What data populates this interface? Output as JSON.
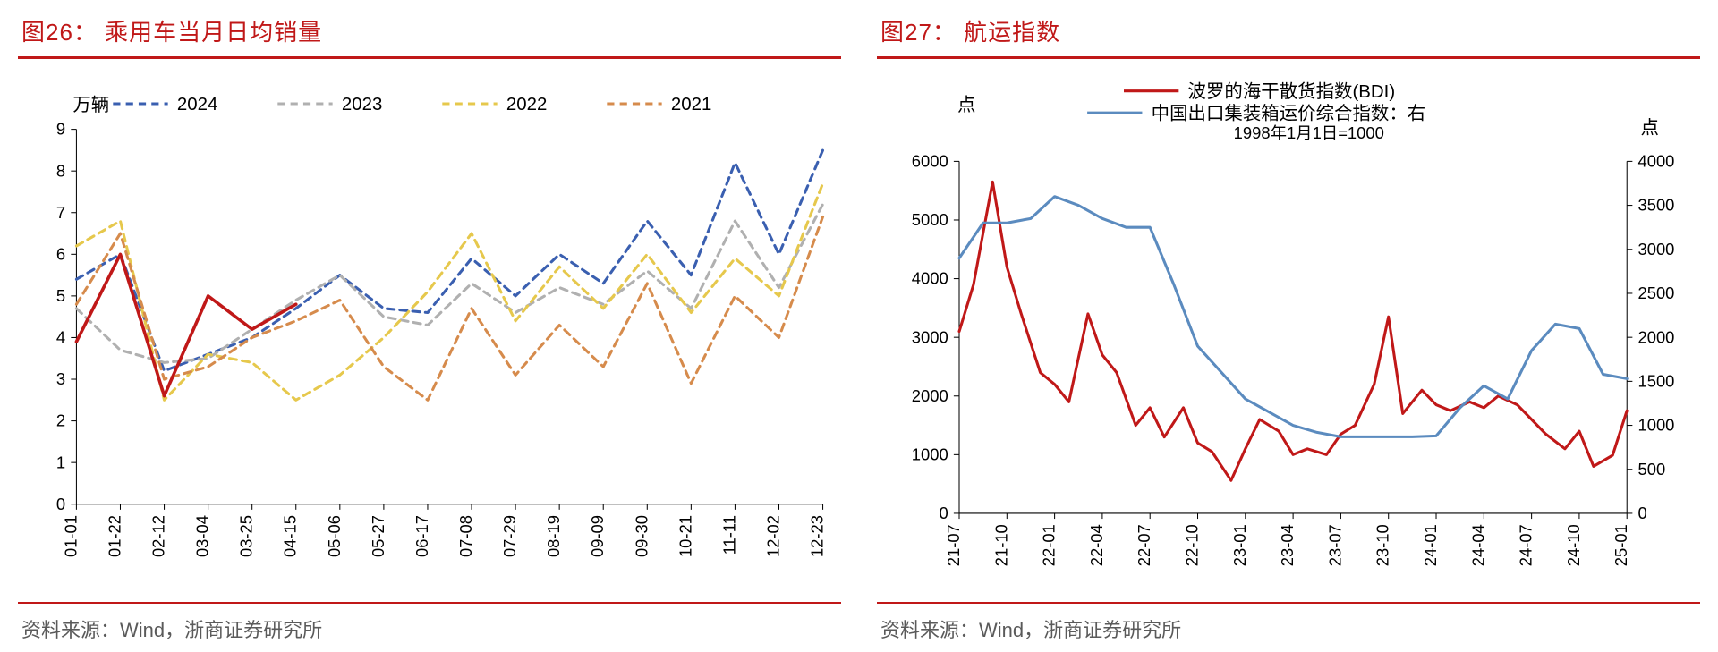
{
  "panel_left": {
    "title": "图26：  乘用车当月日均销量",
    "source": "资料来源：Wind，浙商证券研究所",
    "chart": {
      "type": "line",
      "y_axis_label": "万辆",
      "y_min": 0,
      "y_max": 9,
      "y_tick_step": 1,
      "x_labels": [
        "01-01",
        "01-22",
        "02-12",
        "03-04",
        "03-25",
        "04-15",
        "05-06",
        "05-27",
        "06-17",
        "07-08",
        "07-29",
        "08-19",
        "09-09",
        "09-30",
        "10-21",
        "11-11",
        "12-02",
        "12-23"
      ],
      "legend": [
        {
          "label": "2024",
          "color": "#3a5fb0",
          "dash": "8,6",
          "width": 3
        },
        {
          "label": "2023",
          "color": "#b0b0b0",
          "dash": "8,6",
          "width": 3
        },
        {
          "label": "2022",
          "color": "#e6c84c",
          "dash": "8,6",
          "width": 3
        },
        {
          "label": "2021",
          "color": "#d68b4c",
          "dash": "8,6",
          "width": 3
        }
      ],
      "series": {
        "s2024": {
          "color": "#3a5fb0",
          "dash": "8,6",
          "width": 3,
          "data": [
            5.4,
            6.0,
            3.2,
            3.6,
            4.0,
            4.7,
            5.5,
            4.7,
            4.6,
            5.9,
            5.0,
            6.0,
            5.3,
            6.8,
            5.5,
            8.2,
            6.0,
            8.5
          ]
        },
        "s2023": {
          "color": "#b0b0b0",
          "dash": "8,6",
          "width": 3,
          "data": [
            4.7,
            3.7,
            3.4,
            3.5,
            4.2,
            4.9,
            5.5,
            4.5,
            4.3,
            5.3,
            4.6,
            5.2,
            4.8,
            5.6,
            4.7,
            6.8,
            5.2,
            7.2
          ]
        },
        "s2022": {
          "color": "#e6c84c",
          "dash": "8,6",
          "width": 3,
          "data": [
            6.2,
            6.8,
            2.5,
            3.6,
            3.4,
            2.5,
            3.1,
            4.0,
            5.1,
            6.5,
            4.4,
            5.7,
            4.7,
            6.0,
            4.6,
            5.9,
            5.0,
            7.7
          ]
        },
        "s2021": {
          "color": "#d68b4c",
          "dash": "8,6",
          "width": 3,
          "data": [
            4.8,
            6.5,
            3.0,
            3.3,
            4.0,
            4.4,
            4.9,
            3.3,
            2.5,
            4.7,
            3.1,
            4.3,
            3.3,
            5.3,
            2.9,
            5.0,
            4.0,
            6.9
          ]
        },
        "s2025_partial": {
          "color": "#c01818",
          "dash": "none",
          "width": 3.5,
          "data": [
            3.9,
            6.0,
            2.6,
            5.0,
            4.2,
            4.8
          ]
        }
      },
      "background_color": "#ffffff",
      "grid": false,
      "label_fontsize": 18
    }
  },
  "panel_right": {
    "title": "图27：  航运指数",
    "source": "资料来源：Wind，浙商证券研究所",
    "chart": {
      "type": "line-dual-axis",
      "y_left_label": "点",
      "y_right_label": "点",
      "y_left_min": 0,
      "y_left_max": 6000,
      "y_left_step": 1000,
      "y_right_min": 0,
      "y_right_max": 4000,
      "y_right_step": 500,
      "x_labels": [
        "21-07",
        "21-10",
        "22-01",
        "22-04",
        "22-07",
        "22-10",
        "23-01",
        "23-04",
        "23-07",
        "23-10",
        "24-01",
        "24-04",
        "24-07",
        "24-10",
        "25-01"
      ],
      "legend": [
        {
          "label": "波罗的海干散货指数(BDI)",
          "color": "#c01818",
          "dash": "none",
          "width": 3
        },
        {
          "label": "中国出口集装箱运价综合指数：右",
          "color": "#5b8bbf",
          "dash": "none",
          "width": 3
        }
      ],
      "legend_note": "1998年1月1日=1000",
      "series": {
        "bdi": {
          "color": "#c01818",
          "dash": "none",
          "width": 3,
          "axis": "left",
          "data_x": [
            0,
            0.3,
            0.7,
            1,
            1.3,
            1.7,
            2,
            2.3,
            2.7,
            3,
            3.3,
            3.7,
            4,
            4.3,
            4.7,
            5,
            5.3,
            5.7,
            6,
            6.3,
            6.7,
            7,
            7.3,
            7.7,
            8,
            8.3,
            8.7,
            9,
            9.3,
            9.7,
            10,
            10.3,
            10.7,
            11,
            11.3,
            11.7,
            12,
            12.3,
            12.7,
            13,
            13.3,
            13.7,
            14
          ],
          "data_y": [
            3100,
            3900,
            5650,
            4200,
            3400,
            2400,
            2200,
            1900,
            3400,
            2700,
            2400,
            1500,
            1800,
            1300,
            1800,
            1200,
            1050,
            560,
            1100,
            1600,
            1400,
            1000,
            1100,
            1000,
            1350,
            1500,
            2200,
            3350,
            1700,
            2100,
            1850,
            1750,
            1900,
            1800,
            2000,
            1850,
            1600,
            1350,
            1100,
            1400,
            800,
            990,
            1750
          ]
        },
        "ccfi": {
          "color": "#5b8bbf",
          "dash": "none",
          "width": 3,
          "axis": "right",
          "data_x": [
            0,
            0.5,
            1,
            1.5,
            2,
            2.5,
            3,
            3.5,
            4,
            4.5,
            5,
            5.5,
            6,
            6.5,
            7,
            7.5,
            8,
            8.5,
            9,
            9.5,
            10,
            10.5,
            11,
            11.5,
            12,
            12.5,
            13,
            13.5,
            14
          ],
          "data_y": [
            2900,
            3300,
            3300,
            3350,
            3600,
            3500,
            3350,
            3250,
            3250,
            2600,
            1900,
            1600,
            1300,
            1150,
            1000,
            920,
            870,
            870,
            870,
            870,
            880,
            1200,
            1450,
            1300,
            1850,
            2150,
            2100,
            1580,
            1530
          ]
        }
      },
      "background_color": "#ffffff",
      "label_fontsize": 18
    }
  }
}
